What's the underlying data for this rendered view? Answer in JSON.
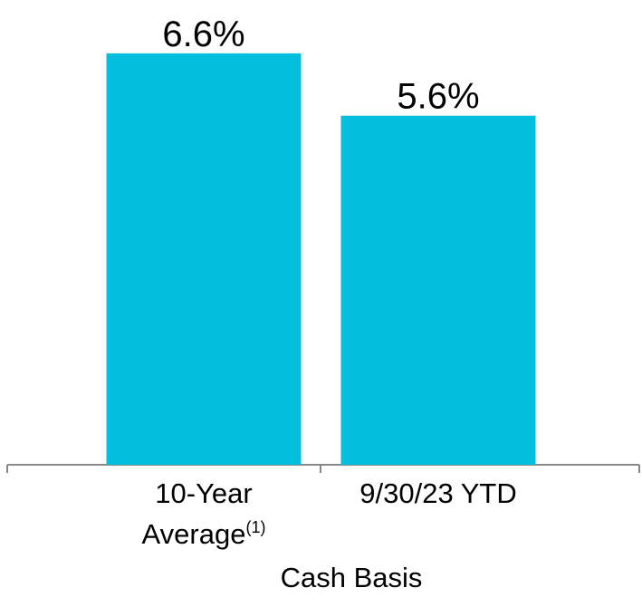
{
  "chart_data": {
    "type": "bar",
    "x_label": "Cash Basis",
    "categories": [
      "10-Year Average",
      "9/30/23 YTD"
    ],
    "footnote_marks": [
      "(1)",
      null
    ],
    "values": [
      6.6,
      5.6
    ],
    "value_labels": [
      "6.6%",
      "5.6%"
    ],
    "color": "#03bfdd"
  }
}
